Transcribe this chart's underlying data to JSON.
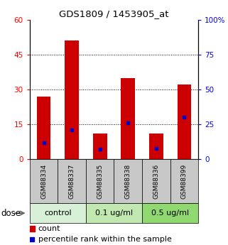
{
  "title": "GDS1809 / 1453905_at",
  "samples": [
    "GSM88334",
    "GSM88337",
    "GSM88335",
    "GSM88338",
    "GSM88336",
    "GSM88399"
  ],
  "count_values": [
    27,
    51,
    11,
    35,
    11,
    32
  ],
  "percentile_values": [
    12,
    21,
    7,
    26,
    8,
    30
  ],
  "groups": [
    {
      "label": "control",
      "indices": [
        0,
        1
      ],
      "color": "#d8efd8"
    },
    {
      "label": "0.1 ug/ml",
      "indices": [
        2,
        3
      ],
      "color": "#c0e8b0"
    },
    {
      "label": "0.5 ug/ml",
      "indices": [
        4,
        5
      ],
      "color": "#90d870"
    }
  ],
  "dose_label": "dose",
  "left_ylim": [
    0,
    60
  ],
  "right_ylim": [
    0,
    100
  ],
  "left_yticks": [
    0,
    15,
    30,
    45,
    60
  ],
  "right_yticks": [
    0,
    25,
    50,
    75,
    100
  ],
  "right_yticklabels": [
    "0",
    "25",
    "50",
    "75",
    "100%"
  ],
  "bar_color": "#cc0000",
  "dot_color": "#0000cc",
  "bar_width": 0.5,
  "bg_color": "#ffffff",
  "plot_bg": "#ffffff",
  "label_bg": "#c8c8c8",
  "legend_count_label": "count",
  "legend_pct_label": "percentile rank within the sample"
}
